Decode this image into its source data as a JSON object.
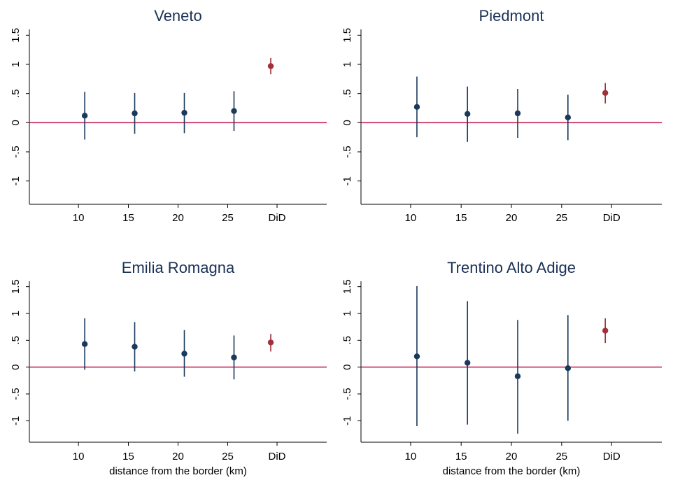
{
  "chart_data": [
    {
      "type": "scatter",
      "title": "Veneto",
      "xlabel": "",
      "ylabel": "",
      "categories": [
        "10",
        "15",
        "20",
        "25",
        "DiD"
      ],
      "yticks": [
        "-1",
        "-.5",
        "0",
        ".5",
        "1",
        "1.5"
      ],
      "ylim": [
        -1.4,
        1.6
      ],
      "reference_line": 0,
      "points": [
        {
          "x": "10",
          "y": 0.12,
          "lo": -0.29,
          "hi": 0.53
        },
        {
          "x": "15",
          "y": 0.16,
          "lo": -0.19,
          "hi": 0.51
        },
        {
          "x": "20",
          "y": 0.17,
          "lo": -0.18,
          "hi": 0.51
        },
        {
          "x": "25",
          "y": 0.2,
          "lo": -0.14,
          "hi": 0.54
        },
        {
          "x": "DiD",
          "y": 0.97,
          "lo": 0.83,
          "hi": 1.11
        }
      ],
      "grid": false
    },
    {
      "type": "scatter",
      "title": "Piedmont",
      "xlabel": "",
      "ylabel": "",
      "categories": [
        "10",
        "15",
        "20",
        "25",
        "DiD"
      ],
      "yticks": [
        "-1",
        "-.5",
        "0",
        ".5",
        "1",
        "1.5"
      ],
      "ylim": [
        -1.4,
        1.6
      ],
      "reference_line": 0,
      "points": [
        {
          "x": "10",
          "y": 0.27,
          "lo": -0.25,
          "hi": 0.79
        },
        {
          "x": "15",
          "y": 0.15,
          "lo": -0.33,
          "hi": 0.62
        },
        {
          "x": "20",
          "y": 0.16,
          "lo": -0.26,
          "hi": 0.58
        },
        {
          "x": "25",
          "y": 0.09,
          "lo": -0.3,
          "hi": 0.48
        },
        {
          "x": "DiD",
          "y": 0.51,
          "lo": 0.33,
          "hi": 0.68
        }
      ],
      "grid": false
    },
    {
      "type": "scatter",
      "title": "Emilia Romagna",
      "xlabel": "distance from the border (km)",
      "ylabel": "",
      "categories": [
        "10",
        "15",
        "20",
        "25",
        "DiD"
      ],
      "yticks": [
        "-1",
        "-.5",
        "0",
        ".5",
        "1",
        "1.5"
      ],
      "ylim": [
        -1.4,
        1.6
      ],
      "reference_line": 0,
      "points": [
        {
          "x": "10",
          "y": 0.43,
          "lo": -0.05,
          "hi": 0.91
        },
        {
          "x": "15",
          "y": 0.38,
          "lo": -0.08,
          "hi": 0.84
        },
        {
          "x": "20",
          "y": 0.25,
          "lo": -0.18,
          "hi": 0.69
        },
        {
          "x": "25",
          "y": 0.18,
          "lo": -0.23,
          "hi": 0.59
        },
        {
          "x": "DiD",
          "y": 0.46,
          "lo": 0.29,
          "hi": 0.62
        }
      ],
      "grid": false
    },
    {
      "type": "scatter",
      "title": "Trentino Alto Adige",
      "xlabel": "distance from the border (km)",
      "ylabel": "",
      "categories": [
        "10",
        "15",
        "20",
        "25",
        "DiD"
      ],
      "yticks": [
        "-1",
        "-.5",
        "0",
        ".5",
        "1",
        "1.5"
      ],
      "ylim": [
        -1.4,
        1.6
      ],
      "reference_line": 0,
      "points": [
        {
          "x": "10",
          "y": 0.2,
          "lo": -1.1,
          "hi": 1.51
        },
        {
          "x": "15",
          "y": 0.08,
          "lo": -1.07,
          "hi": 1.23
        },
        {
          "x": "20",
          "y": -0.17,
          "lo": -1.24,
          "hi": 0.88
        },
        {
          "x": "25",
          "y": -0.02,
          "lo": -1.0,
          "hi": 0.97
        },
        {
          "x": "DiD",
          "y": 0.68,
          "lo": 0.45,
          "hi": 0.91
        }
      ],
      "grid": false
    }
  ],
  "colors": {
    "estimate": "#1a3a5c",
    "did": "#a0303a",
    "reference_line": "#c0144a",
    "title": "#1a3156"
  }
}
